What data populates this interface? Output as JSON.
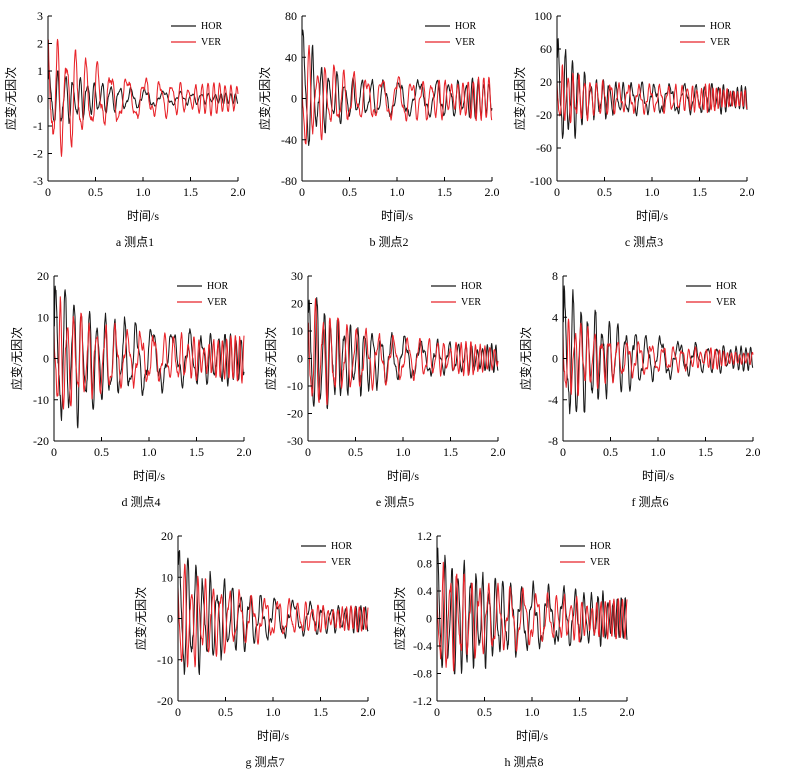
{
  "legend": {
    "hor": "HOR",
    "ver": "VER"
  },
  "colors": {
    "hor": "#1a1a1a",
    "ver": "#e8242a",
    "axis": "#000000"
  },
  "chart_data": [
    {
      "type": "line",
      "id": "a",
      "caption": "a  测点1",
      "xlabel": "时间/s",
      "ylabel": "应变/无因次",
      "xlim": [
        0,
        2.0
      ],
      "xticks": [
        "0",
        "0.5",
        "1.0",
        "1.5",
        "2.0"
      ],
      "ylim": [
        -3,
        3
      ],
      "yticks": [
        "-3",
        "-2",
        "-1",
        "0",
        "1",
        "2",
        "3"
      ],
      "series": [
        {
          "name": "HOR",
          "amp0": 1.3,
          "ampEnd": 0.15,
          "decay": 1.8,
          "freq": 11,
          "phase": 0.3
        },
        {
          "name": "VER",
          "amp0": 2.8,
          "ampEnd": 0.5,
          "decay": 2.2,
          "freq": 9,
          "phase": 1.4
        }
      ]
    },
    {
      "type": "line",
      "id": "b",
      "caption": "b  测点2",
      "xlabel": "时间/s",
      "ylabel": "应变/无因次",
      "xlim": [
        0,
        2.0
      ],
      "xticks": [
        "0",
        "0.5",
        "1.0",
        "1.5",
        "2.0"
      ],
      "ylim": [
        -80,
        80
      ],
      "yticks": [
        "-80",
        "-40",
        "0",
        "40",
        "80"
      ],
      "series": [
        {
          "name": "HOR",
          "amp0": 75,
          "ampEnd": 18,
          "decay": 6,
          "freq": 10,
          "phase": 0.5
        },
        {
          "name": "VER",
          "amp0": 60,
          "ampEnd": 20,
          "decay": 4,
          "freq": 10,
          "phase": 2.6
        }
      ]
    },
    {
      "type": "line",
      "id": "c",
      "caption": "c  测点3",
      "xlabel": "时间/s",
      "ylabel": "应变/无因次",
      "xlim": [
        0,
        2.0
      ],
      "xticks": [
        "0",
        "0.5",
        "1.0",
        "1.5",
        "2.0"
      ],
      "ylim": [
        -100,
        100
      ],
      "yticks": [
        "-100",
        "-60",
        "-20",
        "20",
        "60",
        "100"
      ],
      "series": [
        {
          "name": "HOR",
          "amp0": 80,
          "ampEnd": 18,
          "decay": 5,
          "freq": 13,
          "phase": 0.2
        },
        {
          "name": "VER",
          "amp0": 40,
          "ampEnd": 16,
          "decay": 3,
          "freq": 15,
          "phase": 1.9
        }
      ]
    },
    {
      "type": "line",
      "id": "d",
      "caption": "d  测点4",
      "xlabel": "时间/s",
      "ylabel": "应变/无因次",
      "xlim": [
        0,
        2.0
      ],
      "xticks": [
        "0",
        "0.5",
        "1.0",
        "1.5",
        "2.0"
      ],
      "ylim": [
        -20,
        20
      ],
      "yticks": [
        "-20",
        "-10",
        "0",
        "10",
        "20"
      ],
      "series": [
        {
          "name": "HOR",
          "amp0": 19,
          "ampEnd": 5,
          "decay": 1.5,
          "freq": 10,
          "phase": 0.1
        },
        {
          "name": "VER",
          "amp0": 15,
          "ampEnd": 5,
          "decay": 2,
          "freq": 12,
          "phase": 2.1
        }
      ]
    },
    {
      "type": "line",
      "id": "e",
      "caption": "e  测点5",
      "xlabel": "时间/s",
      "ylabel": "应变/无因次",
      "xlim": [
        0,
        2.0
      ],
      "xticks": [
        "0",
        "0.5",
        "1.0",
        "1.5",
        "2.0"
      ],
      "ylim": [
        -30,
        30
      ],
      "yticks": [
        "-30",
        "-20",
        "-10",
        "0",
        "10",
        "20",
        "30"
      ],
      "series": [
        {
          "name": "HOR",
          "amp0": 24,
          "ampEnd": 4,
          "decay": 1.6,
          "freq": 12,
          "phase": 0.4
        },
        {
          "name": "VER",
          "amp0": 22,
          "ampEnd": 5,
          "decay": 1.8,
          "freq": 11,
          "phase": 1.7
        }
      ]
    },
    {
      "type": "line",
      "id": "f",
      "caption": "f  测点6",
      "xlabel": "时间/s",
      "ylabel": "应变/无因次",
      "xlim": [
        0,
        2.0
      ],
      "xticks": [
        "0",
        "0.5",
        "1.0",
        "1.5",
        "2.0"
      ],
      "ylim": [
        -8,
        8
      ],
      "yticks": [
        "-8",
        "-4",
        "0",
        "4",
        "8"
      ],
      "series": [
        {
          "name": "HOR",
          "amp0": 7.5,
          "ampEnd": 0.8,
          "decay": 1.6,
          "freq": 11,
          "phase": 0.2
        },
        {
          "name": "VER",
          "amp0": 4.5,
          "ampEnd": 0.8,
          "decay": 1.8,
          "freq": 13,
          "phase": 2.4
        }
      ]
    },
    {
      "type": "line",
      "id": "g",
      "caption": "g  测点7",
      "xlabel": "时间/s",
      "ylabel": "应变/无因次",
      "xlim": [
        0,
        2.0
      ],
      "xticks": [
        "0",
        "0.5",
        "1.0",
        "1.5",
        "2.0"
      ],
      "ylim": [
        -20,
        20
      ],
      "yticks": [
        "-20",
        "-10",
        "0",
        "10",
        "20"
      ],
      "series": [
        {
          "name": "HOR",
          "amp0": 18,
          "ampEnd": 2.5,
          "decay": 1.7,
          "freq": 11,
          "phase": 0.3
        },
        {
          "name": "VER",
          "amp0": 14,
          "ampEnd": 2.5,
          "decay": 1.6,
          "freq": 12,
          "phase": 1.9
        }
      ]
    },
    {
      "type": "line",
      "id": "h",
      "caption": "h  测点8",
      "xlabel": "时间/s",
      "ylabel": "应变/无因次",
      "xlim": [
        0,
        2.0
      ],
      "xticks": [
        "0",
        "0.5",
        "1.0",
        "1.5",
        "2.0"
      ],
      "ylim": [
        -1.2,
        1.2
      ],
      "yticks": [
        "-1.2",
        "-0.8",
        "-0.4",
        "0",
        "0.4",
        "0.8",
        "1.2"
      ],
      "series": [
        {
          "name": "HOR",
          "amp0": 1.05,
          "ampEnd": 0.28,
          "decay": 1.3,
          "freq": 13,
          "phase": 0.6
        },
        {
          "name": "VER",
          "amp0": 0.85,
          "ampEnd": 0.25,
          "decay": 1.4,
          "freq": 12,
          "phase": 2.2
        }
      ]
    }
  ]
}
